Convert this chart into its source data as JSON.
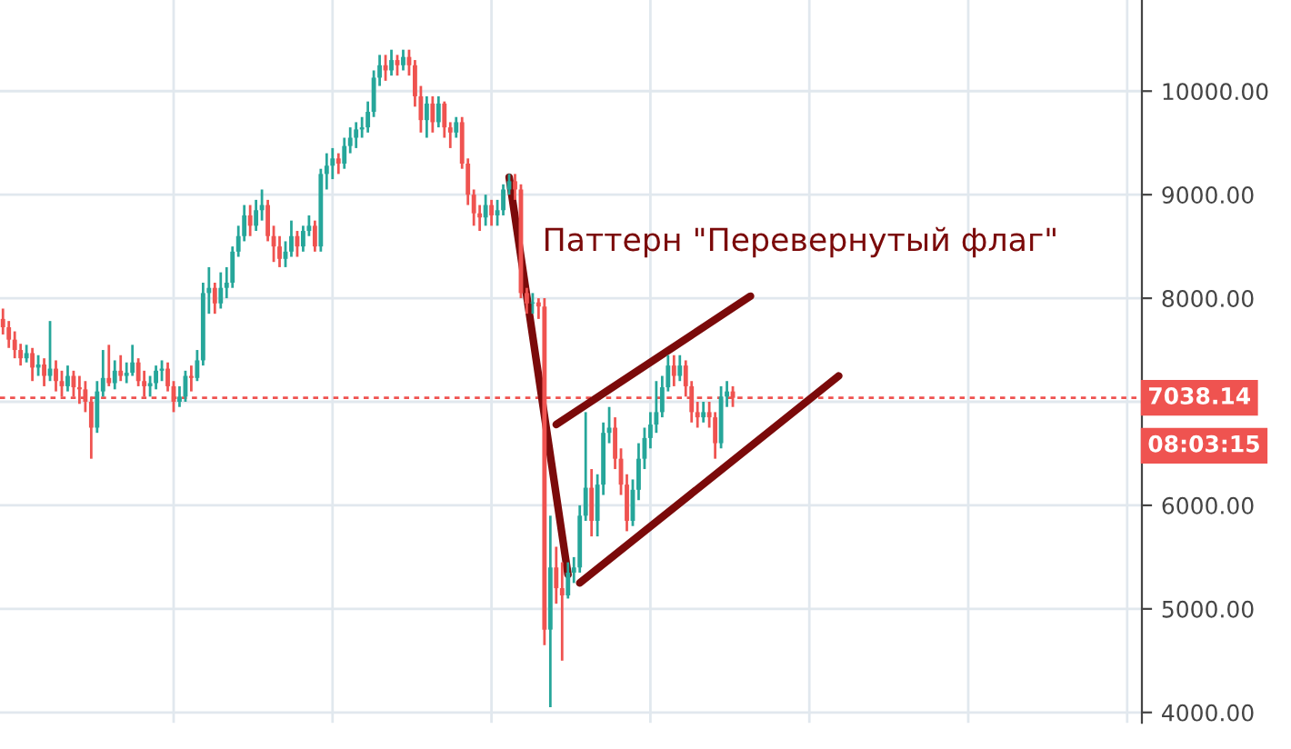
{
  "chart_data": {
    "type": "candlestick",
    "categories": [
      null,
      null,
      null,
      null,
      null,
      null,
      null,
      null,
      null,
      null,
      null,
      null,
      null,
      null,
      null,
      null,
      null,
      null,
      null,
      null,
      null,
      null,
      null,
      null,
      null,
      null,
      null,
      null,
      null,
      null,
      null,
      null,
      null,
      null,
      null,
      null,
      null,
      null,
      null,
      null,
      null,
      null,
      null,
      null,
      null,
      null,
      null,
      null,
      null,
      null,
      null,
      null,
      null,
      null,
      null,
      null,
      null,
      null,
      null,
      null,
      null,
      null,
      null,
      null,
      null,
      null,
      null,
      null,
      null,
      null,
      null,
      null,
      null,
      null,
      null,
      null,
      null,
      null,
      null,
      null,
      null,
      null,
      null,
      null,
      null,
      null,
      null,
      null,
      null,
      null,
      null,
      null,
      null,
      null,
      null,
      null,
      null,
      null,
      null,
      null,
      null,
      null,
      null,
      null,
      null,
      null,
      null,
      null,
      null,
      null,
      null,
      null,
      null,
      null,
      null,
      null,
      null,
      null,
      null,
      null,
      null,
      null,
      null,
      null,
      null,
      null,
      null,
      null,
      null,
      null,
      null,
      null,
      null,
      null,
      null,
      null,
      null,
      null,
      null,
      null,
      null,
      null,
      null,
      null,
      null,
      null,
      null,
      null,
      null,
      null,
      null,
      null,
      null,
      null,
      null,
      null,
      null,
      null,
      null,
      null,
      null,
      null,
      null,
      null,
      null,
      null,
      null,
      null,
      null,
      null,
      null,
      null,
      null,
      null,
      null,
      null,
      null,
      null,
      null,
      null,
      null,
      null,
      null,
      null,
      null,
      null,
      null,
      null,
      null,
      null,
      null,
      null,
      null,
      null
    ],
    "ohlc": [
      [
        7800,
        7900,
        7650,
        7720
      ],
      [
        7720,
        7780,
        7520,
        7600
      ],
      [
        7600,
        7680,
        7420,
        7500
      ],
      [
        7500,
        7560,
        7350,
        7420
      ],
      [
        7420,
        7550,
        7380,
        7470
      ],
      [
        7470,
        7520,
        7200,
        7330
      ],
      [
        7330,
        7450,
        7250,
        7360
      ],
      [
        7360,
        7420,
        7150,
        7250
      ],
      [
        7250,
        7780,
        7200,
        7320
      ],
      [
        7320,
        7400,
        7100,
        7200
      ],
      [
        7200,
        7300,
        7050,
        7150
      ],
      [
        7150,
        7350,
        7100,
        7250
      ],
      [
        7250,
        7300,
        7050,
        7140
      ],
      [
        7140,
        7250,
        6980,
        7120
      ],
      [
        7120,
        7200,
        6900,
        7000
      ],
      [
        7000,
        7050,
        6450,
        6750
      ],
      [
        6750,
        7200,
        6700,
        7100
      ],
      [
        7100,
        7500,
        7050,
        7230
      ],
      [
        7230,
        7550,
        7150,
        7180
      ],
      [
        7180,
        7400,
        7120,
        7300
      ],
      [
        7300,
        7450,
        7200,
        7250
      ],
      [
        7250,
        7380,
        7180,
        7280
      ],
      [
        7280,
        7550,
        7250,
        7380
      ],
      [
        7380,
        7420,
        7150,
        7200
      ],
      [
        7200,
        7300,
        7050,
        7150
      ],
      [
        7150,
        7250,
        7050,
        7180
      ],
      [
        7180,
        7350,
        7120,
        7300
      ],
      [
        7300,
        7400,
        7200,
        7320
      ],
      [
        7320,
        7380,
        7100,
        7150
      ],
      [
        7150,
        7200,
        6900,
        7000
      ],
      [
        7000,
        7150,
        6950,
        7050
      ],
      [
        7050,
        7300,
        7000,
        7250
      ],
      [
        7250,
        7350,
        7100,
        7230
      ],
      [
        7230,
        7500,
        7200,
        7400
      ],
      [
        7400,
        8150,
        7350,
        8050
      ],
      [
        8050,
        8300,
        7850,
        8100
      ],
      [
        8100,
        8150,
        7850,
        7950
      ],
      [
        7950,
        8250,
        7900,
        8100
      ],
      [
        8100,
        8300,
        8000,
        8150
      ],
      [
        8150,
        8500,
        8100,
        8450
      ],
      [
        8450,
        8700,
        8400,
        8600
      ],
      [
        8600,
        8900,
        8550,
        8800
      ],
      [
        8800,
        8900,
        8600,
        8700
      ],
      [
        8700,
        8950,
        8650,
        8850
      ],
      [
        8850,
        9050,
        8750,
        8900
      ],
      [
        8900,
        8950,
        8550,
        8600
      ],
      [
        8600,
        8700,
        8350,
        8500
      ],
      [
        8500,
        8600,
        8300,
        8380
      ],
      [
        8380,
        8550,
        8300,
        8450
      ],
      [
        8450,
        8750,
        8400,
        8600
      ],
      [
        8600,
        8650,
        8400,
        8500
      ],
      [
        8500,
        8700,
        8450,
        8650
      ],
      [
        8650,
        8800,
        8600,
        8700
      ],
      [
        8700,
        8750,
        8450,
        8500
      ],
      [
        8500,
        9250,
        8450,
        9200
      ],
      [
        9200,
        9400,
        9050,
        9280
      ],
      [
        9280,
        9450,
        9150,
        9350
      ],
      [
        9350,
        9400,
        9200,
        9300
      ],
      [
        9300,
        9550,
        9250,
        9470
      ],
      [
        9470,
        9650,
        9400,
        9550
      ],
      [
        9550,
        9700,
        9450,
        9630
      ],
      [
        9630,
        9750,
        9550,
        9650
      ],
      [
        9650,
        9900,
        9600,
        9800
      ],
      [
        9800,
        10200,
        9750,
        10130
      ],
      [
        10130,
        10350,
        10050,
        10250
      ],
      [
        10250,
        10350,
        10100,
        10200
      ],
      [
        10200,
        10400,
        10150,
        10300
      ],
      [
        10300,
        10350,
        10150,
        10250
      ],
      [
        10250,
        10400,
        10200,
        10330
      ],
      [
        10330,
        10400,
        10150,
        10250
      ],
      [
        10250,
        10300,
        9850,
        9950
      ],
      [
        9950,
        10050,
        9600,
        9720
      ],
      [
        9720,
        9950,
        9550,
        9880
      ],
      [
        9880,
        9950,
        9600,
        9700
      ],
      [
        9700,
        9950,
        9650,
        9880
      ],
      [
        9880,
        9900,
        9550,
        9650
      ],
      [
        9650,
        9700,
        9450,
        9600
      ],
      [
        9600,
        9750,
        9550,
        9700
      ],
      [
        9700,
        9750,
        9250,
        9300
      ],
      [
        9300,
        9350,
        8900,
        9000
      ],
      [
        9000,
        9050,
        8700,
        8820
      ],
      [
        8820,
        8900,
        8650,
        8780
      ],
      [
        8780,
        9000,
        8700,
        8900
      ],
      [
        8900,
        8950,
        8700,
        8800
      ],
      [
        8800,
        8950,
        8700,
        8850
      ],
      [
        8850,
        9100,
        8800,
        9050
      ],
      [
        9050,
        9200,
        9000,
        9130
      ],
      [
        9130,
        9200,
        8950,
        9050
      ],
      [
        9050,
        9100,
        8000,
        8050
      ],
      [
        8050,
        8100,
        7850,
        7950
      ],
      [
        7950,
        8050,
        7850,
        7960
      ],
      [
        7960,
        8000,
        7800,
        7920
      ],
      [
        7920,
        8000,
        4650,
        4800
      ],
      [
        4800,
        5900,
        4050,
        5400
      ],
      [
        5400,
        5600,
        5050,
        5200
      ],
      [
        5200,
        5450,
        4500,
        5130
      ],
      [
        5130,
        5450,
        5100,
        5350
      ],
      [
        5350,
        5500,
        5250,
        5400
      ],
      [
        5400,
        6000,
        5350,
        5900
      ],
      [
        5900,
        6900,
        5850,
        6170
      ],
      [
        6170,
        6350,
        5700,
        5850
      ],
      [
        5850,
        6300,
        5700,
        6200
      ],
      [
        6200,
        6800,
        6100,
        6700
      ],
      [
        6700,
        6950,
        6600,
        6750
      ],
      [
        6750,
        6850,
        6350,
        6450
      ],
      [
        6450,
        6550,
        6100,
        6200
      ],
      [
        6200,
        6300,
        5750,
        5850
      ],
      [
        5850,
        6250,
        5800,
        6150
      ],
      [
        6150,
        6600,
        6050,
        6450
      ],
      [
        6450,
        6750,
        6350,
        6650
      ],
      [
        6650,
        6900,
        6550,
        6780
      ],
      [
        6780,
        7200,
        6700,
        6900
      ],
      [
        6900,
        7250,
        6850,
        7140
      ],
      [
        7140,
        7450,
        7100,
        7350
      ],
      [
        7350,
        7450,
        7150,
        7250
      ],
      [
        7250,
        7450,
        7200,
        7350
      ],
      [
        7350,
        7400,
        7050,
        7150
      ],
      [
        7150,
        7200,
        6800,
        6900
      ],
      [
        6900,
        7000,
        6750,
        6850
      ],
      [
        6850,
        7000,
        6800,
        6900
      ],
      [
        6900,
        7000,
        6750,
        6850
      ],
      [
        6850,
        6900,
        6450,
        6600
      ],
      [
        6600,
        7150,
        6550,
        7050
      ],
      [
        7050,
        7200,
        6950,
        7100
      ],
      [
        7100,
        7150,
        6950,
        7038.14
      ],
      null,
      null,
      null,
      null,
      null,
      null,
      null,
      null,
      null,
      null,
      null,
      null,
      null,
      null,
      null,
      null,
      null,
      null,
      null,
      null,
      null,
      null,
      null,
      null,
      null,
      null,
      null,
      null,
      null,
      null,
      null,
      null,
      null,
      null,
      null,
      null,
      null,
      null,
      null,
      null,
      null,
      null,
      null,
      null,
      null,
      null,
      null,
      null,
      null,
      null,
      null,
      null,
      null,
      null,
      null,
      null,
      null,
      null,
      null,
      null,
      null,
      null,
      null,
      null,
      null,
      null,
      null,
      null,
      null
    ],
    "colors": [
      "#ef5350",
      "#ef5350",
      "#ef5350",
      "#ef5350",
      "#26a69a",
      "#ef5350",
      "#26a69a",
      "#ef5350",
      "#26a69a",
      "#ef5350",
      "#ef5350",
      "#26a69a",
      "#ef5350",
      "#ef5350",
      "#ef5350",
      "#ef5350",
      "#26a69a",
      "#26a69a",
      "#ef5350",
      "#26a69a",
      "#ef5350",
      "#26a69a",
      "#26a69a",
      "#ef5350",
      "#ef5350",
      "#26a69a",
      "#26a69a",
      "#26a69a",
      "#ef5350",
      "#ef5350",
      "#26a69a",
      "#26a69a",
      "#ef5350",
      "#26a69a",
      "#26a69a",
      "#26a69a",
      "#ef5350",
      "#26a69a",
      "#26a69a",
      "#26a69a",
      "#26a69a",
      "#26a69a",
      "#ef5350",
      "#26a69a",
      "#26a69a",
      "#ef5350",
      "#ef5350",
      "#ef5350",
      "#26a69a",
      "#26a69a",
      "#ef5350",
      "#26a69a",
      "#26a69a",
      "#ef5350",
      "#26a69a",
      "#26a69a",
      "#26a69a",
      "#ef5350",
      "#26a69a",
      "#26a69a",
      "#26a69a",
      "#26a69a",
      "#26a69a",
      "#26a69a",
      "#26a69a",
      "#ef5350",
      "#26a69a",
      "#ef5350",
      "#26a69a",
      "#ef5350",
      "#ef5350",
      "#ef5350",
      "#26a69a",
      "#ef5350",
      "#26a69a",
      "#ef5350",
      "#ef5350",
      "#26a69a",
      "#ef5350",
      "#ef5350",
      "#ef5350",
      "#ef5350",
      "#26a69a",
      "#ef5350",
      "#26a69a",
      "#26a69a",
      "#26a69a",
      "#ef5350",
      "#ef5350",
      "#ef5350",
      "#26a69a",
      "#ef5350",
      "#ef5350",
      "#26a69a",
      "#ef5350",
      "#ef5350",
      "#26a69a",
      "#26a69a",
      "#26a69a",
      "#26a69a",
      "#ef5350",
      "#26a69a",
      "#26a69a",
      "#26a69a",
      "#ef5350",
      "#ef5350",
      "#ef5350",
      "#26a69a",
      "#26a69a",
      "#26a69a",
      "#26a69a",
      "#26a69a",
      "#26a69a",
      "#26a69a",
      "#ef5350",
      "#26a69a",
      "#ef5350",
      "#ef5350",
      "#ef5350",
      "#26a69a",
      "#ef5350",
      "#ef5350",
      "#26a69a",
      "#26a69a",
      "#ef5350",
      null,
      null,
      null,
      null,
      null,
      null,
      null,
      null,
      null,
      null,
      null,
      null,
      null,
      null,
      null,
      null,
      null,
      null,
      null,
      null,
      null,
      null,
      null,
      null,
      null,
      null,
      null,
      null,
      null,
      null,
      null,
      null,
      null,
      null,
      null,
      null,
      null,
      null,
      null,
      null,
      null,
      null,
      null,
      null,
      null,
      null,
      null,
      null,
      null,
      null,
      null,
      null,
      null,
      null,
      null,
      null,
      null,
      null,
      null,
      null,
      null,
      null,
      null,
      null,
      null,
      null,
      null,
      null,
      null
    ],
    "series": [
      {
        "type": "line",
        "color": "#7b0a0a",
        "values": [
          null,
          null,
          null,
          null,
          null,
          null,
          null,
          null,
          null,
          null,
          null,
          null,
          null,
          null,
          null,
          null,
          null,
          null,
          null,
          null,
          null,
          null,
          null,
          null,
          null,
          null,
          null,
          null,
          null,
          null,
          null,
          null,
          null,
          null,
          null,
          null,
          null,
          null,
          null,
          null,
          null,
          null,
          null,
          null,
          null,
          null,
          null,
          null,
          null,
          null,
          null,
          null,
          null,
          null,
          null,
          null,
          null,
          null,
          null,
          null,
          null,
          null,
          null,
          null,
          null,
          null,
          null,
          null,
          null,
          null,
          null,
          null,
          null,
          null,
          null,
          null,
          null,
          null,
          null,
          null,
          null,
          null,
          null,
          null,
          null,
          null,
          9170,
          null,
          null,
          null,
          null,
          null,
          null,
          null,
          null,
          null,
          5330,
          null,
          null,
          null,
          null,
          null,
          null,
          null,
          null,
          null,
          null,
          null,
          null,
          null,
          null,
          null,
          null,
          null,
          null,
          null,
          null,
          null,
          null,
          null,
          null,
          null,
          null,
          null,
          null,
          null,
          null,
          null,
          null,
          null,
          null,
          null,
          null,
          null,
          null,
          null,
          null,
          null,
          null,
          null,
          null,
          null,
          null,
          null,
          null,
          null,
          null,
          null,
          null,
          null,
          null,
          null,
          null,
          null,
          null,
          null,
          null,
          null,
          null,
          null,
          null,
          null,
          null,
          null,
          null,
          null,
          null,
          null,
          null,
          null,
          null,
          null,
          null,
          null,
          null,
          null,
          null,
          null,
          null,
          null,
          null,
          null,
          null,
          null,
          null,
          null,
          null,
          null,
          null,
          null,
          null,
          null,
          null,
          null
        ]
      },
      {
        "type": "line",
        "color": "#7b0a0a",
        "values": [
          null,
          null,
          null,
          null,
          null,
          null,
          null,
          null,
          null,
          null,
          null,
          null,
          null,
          null,
          null,
          null,
          null,
          null,
          null,
          null,
          null,
          null,
          null,
          null,
          null,
          null,
          null,
          null,
          null,
          null,
          null,
          null,
          null,
          null,
          null,
          null,
          null,
          null,
          null,
          null,
          null,
          null,
          null,
          null,
          null,
          null,
          null,
          null,
          null,
          null,
          null,
          null,
          null,
          null,
          null,
          null,
          null,
          null,
          null,
          null,
          null,
          null,
          null,
          null,
          null,
          null,
          null,
          null,
          null,
          null,
          null,
          null,
          null,
          null,
          null,
          null,
          null,
          null,
          null,
          null,
          null,
          null,
          null,
          null,
          null,
          null,
          null,
          null,
          null,
          null,
          null,
          null,
          null,
          null,
          6780,
          null,
          null,
          null,
          null,
          null,
          null,
          null,
          null,
          null,
          null,
          null,
          null,
          null,
          null,
          null,
          null,
          null,
          null,
          null,
          null,
          null,
          null,
          null,
          null,
          null,
          null,
          null,
          null,
          null,
          null,
          null,
          null,
          8020,
          null,
          null,
          null,
          null,
          null,
          null,
          null,
          null,
          null,
          null,
          null,
          null,
          null,
          null,
          null,
          null,
          null,
          null,
          null,
          null,
          null,
          null,
          null,
          null,
          null,
          null,
          null,
          null,
          null,
          null,
          null,
          null,
          null,
          null,
          null,
          null,
          null,
          null,
          null,
          null,
          null,
          null,
          null,
          null,
          null,
          null,
          null,
          null,
          null,
          null,
          null,
          null,
          null,
          null,
          null,
          null,
          null,
          null,
          null,
          null,
          null,
          null,
          null,
          null,
          null,
          null
        ]
      },
      {
        "type": "line",
        "color": "#7b0a0a",
        "values": [
          null,
          null,
          null,
          null,
          null,
          null,
          null,
          null,
          null,
          null,
          null,
          null,
          null,
          null,
          null,
          null,
          null,
          null,
          null,
          null,
          null,
          null,
          null,
          null,
          null,
          null,
          null,
          null,
          null,
          null,
          null,
          null,
          null,
          null,
          null,
          null,
          null,
          null,
          null,
          null,
          null,
          null,
          null,
          null,
          null,
          null,
          null,
          null,
          null,
          null,
          null,
          null,
          null,
          null,
          null,
          null,
          null,
          null,
          null,
          null,
          null,
          null,
          null,
          null,
          null,
          null,
          null,
          null,
          null,
          null,
          null,
          null,
          null,
          null,
          null,
          null,
          null,
          null,
          null,
          null,
          null,
          null,
          null,
          null,
          null,
          null,
          null,
          null,
          null,
          null,
          null,
          null,
          null,
          null,
          null,
          null,
          null,
          null,
          5250,
          null,
          null,
          null,
          null,
          null,
          null,
          null,
          null,
          null,
          null,
          null,
          null,
          null,
          null,
          null,
          null,
          null,
          null,
          null,
          null,
          null,
          null,
          null,
          null,
          null,
          null,
          null,
          null,
          null,
          null,
          null,
          null,
          null,
          null,
          null,
          null,
          null,
          null,
          null,
          null,
          null,
          null,
          null,
          7250,
          null,
          null,
          null,
          null,
          null,
          null,
          null,
          null,
          null,
          null,
          null,
          null,
          null,
          null,
          null,
          null,
          null,
          null,
          null,
          null,
          null,
          null,
          null,
          null,
          null,
          null,
          null,
          null,
          null,
          null,
          null,
          null,
          null,
          null,
          null,
          null,
          null,
          null,
          null,
          null,
          null,
          null,
          null,
          null,
          null,
          null,
          null,
          null,
          null,
          null,
          null
        ]
      }
    ],
    "ylim": [
      3900,
      10880
    ],
    "yticks": [
      {
        "value": 4000,
        "label": "4000.00"
      },
      {
        "value": 5000,
        "label": "5000.00"
      },
      {
        "value": 6000,
        "label": "6000.00"
      },
      {
        "value": 7000,
        "label": null
      },
      {
        "value": 8000,
        "label": "8000.00"
      },
      {
        "value": 9000,
        "label": "9000.00"
      },
      {
        "value": 10000,
        "label": "10000.00"
      }
    ],
    "tick_labels": "y",
    "grid": true,
    "ref_lines": [
      {
        "axis": "y",
        "value": 7038.14,
        "label": "7038.14",
        "color": "#ef5350",
        "line_style": "dotted"
      }
    ],
    "annotations": [
      "Паттерн \"Перевернутый флаг\"",
      "08:03:15"
    ]
  }
}
